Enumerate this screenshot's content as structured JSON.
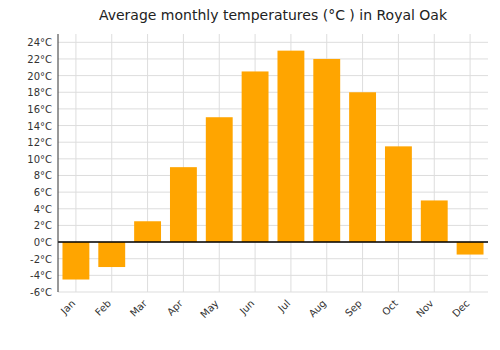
{
  "chart_data": {
    "type": "bar",
    "title": "Average monthly temperatures (°C ) in Royal Oak",
    "categories": [
      "Jan",
      "Feb",
      "Mar",
      "Apr",
      "May",
      "Jun",
      "Jul",
      "Aug",
      "Sep",
      "Oct",
      "Nov",
      "Dec"
    ],
    "values": [
      -4.5,
      -3.0,
      2.5,
      9.0,
      15.0,
      20.5,
      23.0,
      22.0,
      18.0,
      11.5,
      5.0,
      -1.5
    ],
    "color": "#FFA500",
    "ylim": [
      -6,
      25
    ],
    "yticks": [
      {
        "value": -6,
        "label": "-6°C"
      },
      {
        "value": -4,
        "label": "-4°C"
      },
      {
        "value": -2,
        "label": "-2°C"
      },
      {
        "value": 0,
        "label": "0°C"
      },
      {
        "value": 2,
        "label": "2°C"
      },
      {
        "value": 4,
        "label": "4°C"
      },
      {
        "value": 6,
        "label": "6°C"
      },
      {
        "value": 8,
        "label": "8°C"
      },
      {
        "value": 10,
        "label": "10°C"
      },
      {
        "value": 12,
        "label": "12°C"
      },
      {
        "value": 14,
        "label": "14°C"
      },
      {
        "value": 16,
        "label": "16°C"
      },
      {
        "value": 18,
        "label": "18°C"
      },
      {
        "value": 20,
        "label": "20°C"
      },
      {
        "value": 22,
        "label": "22°C"
      },
      {
        "value": 24,
        "label": "24°C"
      }
    ],
    "grid": true
  }
}
